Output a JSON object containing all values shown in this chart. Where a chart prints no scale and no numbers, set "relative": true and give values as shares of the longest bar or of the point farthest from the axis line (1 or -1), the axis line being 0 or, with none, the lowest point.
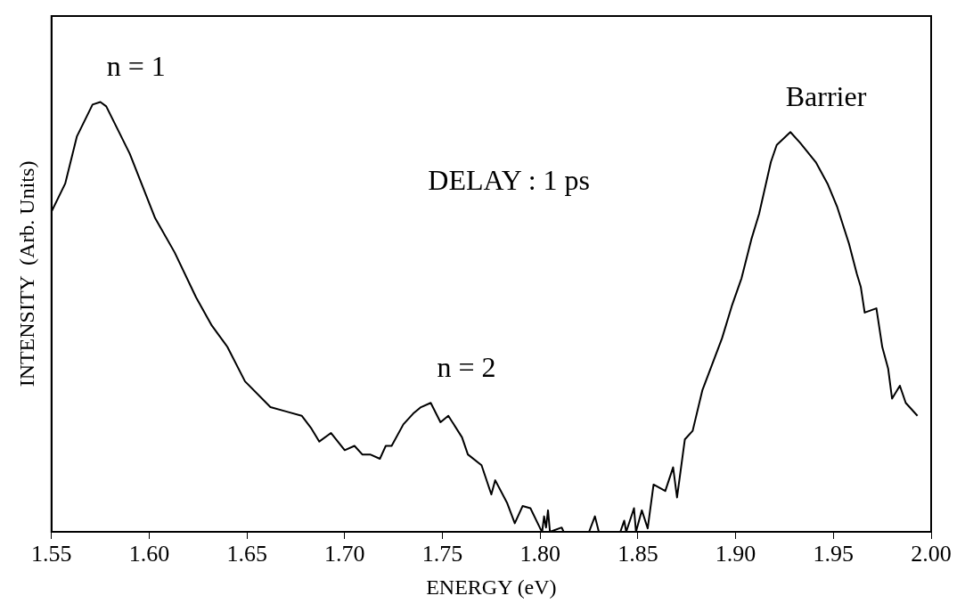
{
  "chart_data": {
    "type": "line",
    "xlabel": "ENERGY (eV)",
    "ylabel": "INTENSITY  (Arb. Units)",
    "relative": true,
    "color": "#000000",
    "marker": "none",
    "grid": false,
    "legend": false,
    "xlim": [
      1.55,
      2.0
    ],
    "xticks": [
      1.55,
      {
        "value": 1.6,
        "label": "1.60"
      },
      1.65,
      {
        "value": 1.7,
        "label": "1.70"
      },
      1.75,
      {
        "value": 1.8,
        "label": "1.80"
      },
      1.85,
      {
        "value": 1.9,
        "label": "1.90"
      },
      1.95,
      {
        "value": 2.0,
        "label": "2.00"
      }
    ],
    "annotations": [
      {
        "text": "n = 1",
        "x": 1.575,
        "y": 1.0
      },
      {
        "text": "n = 2",
        "x": 1.744,
        "y": 0.3
      },
      {
        "text": "Barrier",
        "x": 1.928,
        "y": 0.93
      },
      "DELAY : 1 ps"
    ],
    "x": [
      1.55,
      1.557,
      1.563,
      1.571,
      1.575,
      1.578,
      1.59,
      1.603,
      1.613,
      1.624,
      1.632,
      1.64,
      1.649,
      1.662,
      1.67,
      1.678,
      1.683,
      1.687,
      1.693,
      1.7,
      1.705,
      1.709,
      1.713,
      1.718,
      1.721,
      1.724,
      1.73,
      1.735,
      1.739,
      1.744,
      1.749,
      1.753,
      1.76,
      1.763,
      1.77,
      1.775,
      1.777,
      1.783,
      1.787,
      1.791,
      1.795,
      1.8,
      1.801,
      1.802,
      1.803,
      1.804,
      1.805,
      1.811,
      1.812,
      1.825,
      1.828,
      1.83,
      1.841,
      1.843,
      1.844,
      1.848,
      1.849,
      1.852,
      1.855,
      1.858,
      1.864,
      1.868,
      1.87,
      1.874,
      1.878,
      1.883,
      1.893,
      1.898,
      1.903,
      1.908,
      1.912,
      1.918,
      1.921,
      1.928,
      1.933,
      1.941,
      1.947,
      1.952,
      1.958,
      1.962,
      1.964,
      1.966,
      1.972,
      1.975,
      1.978,
      1.98,
      1.984,
      1.987,
      1.993
    ],
    "values": [
      0.745,
      0.81,
      0.92,
      0.994,
      1.0,
      0.99,
      0.88,
      0.73,
      0.65,
      0.545,
      0.48,
      0.43,
      0.35,
      0.29,
      0.28,
      0.27,
      0.24,
      0.21,
      0.23,
      0.19,
      0.2,
      0.18,
      0.18,
      0.17,
      0.2,
      0.2,
      0.25,
      0.275,
      0.29,
      0.3,
      0.255,
      0.27,
      0.22,
      0.18,
      0.155,
      0.087,
      0.12,
      0.068,
      0.02,
      0.06,
      0.055,
      0.008,
      0,
      0.036,
      0.01,
      0.05,
      0,
      0.01,
      0,
      0,
      0.036,
      0,
      0,
      0.026,
      0,
      0.055,
      0,
      0.05,
      0.008,
      0.11,
      0.095,
      0.15,
      0.08,
      0.215,
      0.235,
      0.33,
      0.45,
      0.525,
      0.59,
      0.68,
      0.74,
      0.86,
      0.9,
      0.93,
      0.905,
      0.86,
      0.81,
      0.755,
      0.67,
      0.6,
      0.57,
      0.51,
      0.52,
      0.43,
      0.38,
      0.31,
      0.34,
      0.3,
      0.27
    ]
  }
}
